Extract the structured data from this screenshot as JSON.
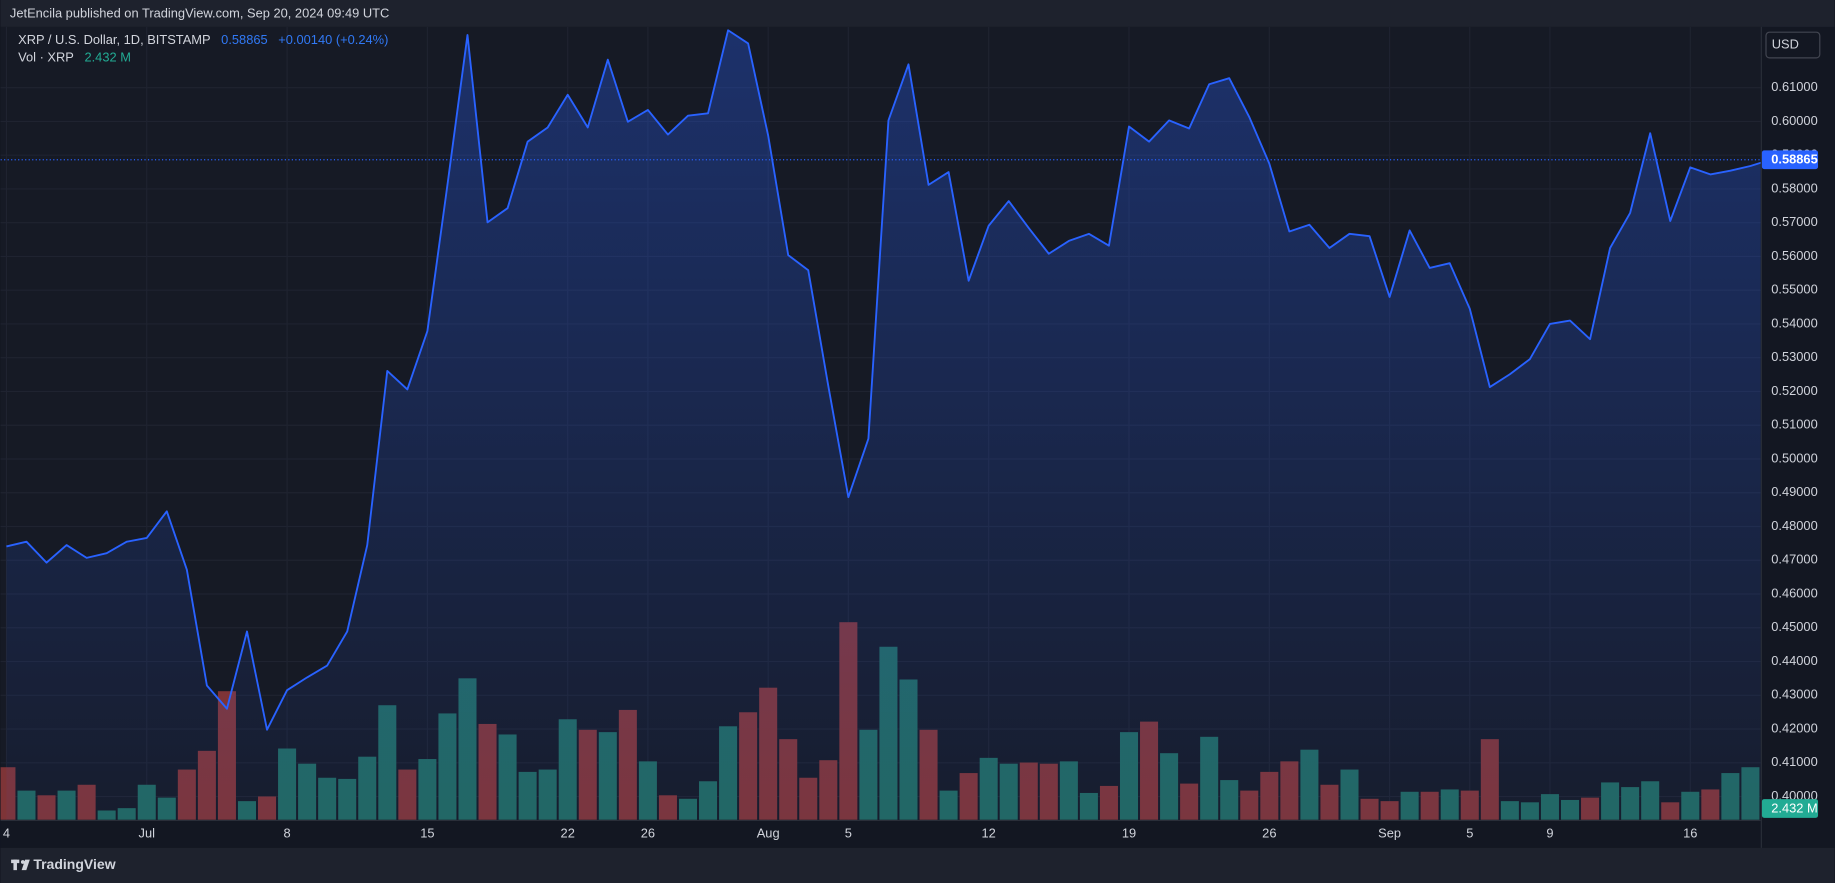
{
  "chart_data": {
    "type": "line",
    "header": "JetEncila published on TradingView.com, Sep 20, 2024 09:49 UTC",
    "change": "+0.00140 (+0.24%)",
    "currency": "USD",
    "footer": "TradingView",
    "grid": true,
    "categories": [
      "4",
      null,
      null,
      null,
      null,
      null,
      null,
      "Jul",
      null,
      null,
      null,
      null,
      null,
      null,
      "8",
      null,
      null,
      null,
      null,
      null,
      null,
      "15",
      null,
      null,
      null,
      null,
      null,
      null,
      "22",
      null,
      null,
      null,
      "26",
      null,
      null,
      null,
      null,
      null,
      "Aug",
      null,
      null,
      null,
      "5",
      null,
      null,
      null,
      null,
      null,
      null,
      "12",
      null,
      null,
      null,
      null,
      null,
      null,
      "19",
      null,
      null,
      null,
      null,
      null,
      null,
      "26",
      null,
      null,
      null,
      null,
      null,
      "Sep",
      null,
      null,
      null,
      "5",
      null,
      null,
      null,
      "9",
      null,
      null,
      null,
      null,
      null,
      null,
      "16",
      null,
      null,
      null,
      null
    ],
    "ylim": [
      0.3931,
      0.628
    ],
    "yticks": [
      {
        "value": 0.4,
        "label": "0.40000"
      },
      {
        "value": 0.41,
        "label": "0.41000"
      },
      {
        "value": 0.42,
        "label": "0.42000"
      },
      {
        "value": 0.43,
        "label": "0.43000"
      },
      {
        "value": 0.44,
        "label": "0.44000"
      },
      {
        "value": 0.45,
        "label": "0.45000"
      },
      {
        "value": 0.46,
        "label": "0.46000"
      },
      {
        "value": 0.47,
        "label": "0.47000"
      },
      {
        "value": 0.48,
        "label": "0.48000"
      },
      {
        "value": 0.49,
        "label": "0.49000"
      },
      {
        "value": 0.5,
        "label": "0.50000"
      },
      {
        "value": 0.51,
        "label": "0.51000"
      },
      {
        "value": 0.52,
        "label": "0.52000"
      },
      {
        "value": 0.53,
        "label": "0.53000"
      },
      {
        "value": 0.54,
        "label": "0.54000"
      },
      {
        "value": 0.55,
        "label": "0.55000"
      },
      {
        "value": 0.56,
        "label": "0.56000"
      },
      {
        "value": 0.57,
        "label": "0.57000"
      },
      {
        "value": 0.58,
        "label": "0.58000"
      },
      {
        "value": 0.59,
        "label": "0.59000"
      },
      {
        "value": 0.6,
        "label": "0.60000"
      },
      {
        "value": 0.61,
        "label": "0.61000"
      }
    ],
    "y2lim": [
      0,
      169.5
    ],
    "series": [
      {
        "name": "XRP / U.S. Dollar, 1D, BITSTAMP",
        "color": "#2962ff",
        "values": [
          0.4741,
          0.4755,
          0.4693,
          0.4745,
          0.4707,
          0.4721,
          0.4755,
          0.4766,
          0.4845,
          0.4672,
          0.4329,
          0.426,
          0.4489,
          0.4198,
          0.4315,
          0.4353,
          0.4388,
          0.4489,
          0.4745,
          0.5261,
          0.5206,
          0.5379,
          0.5812,
          0.6256,
          0.5701,
          0.5743,
          0.594,
          0.5982,
          0.6079,
          0.5982,
          0.6183,
          0.5999,
          0.6034,
          0.5961,
          0.6017,
          0.6024,
          0.627,
          0.6231,
          0.5958,
          0.5604,
          0.5559,
          0.5216,
          0.4887,
          0.506,
          0.6003,
          0.6169,
          0.5812,
          0.585,
          0.5528,
          0.5691,
          0.5764,
          0.5684,
          0.5608,
          0.5646,
          0.5667,
          0.5632,
          0.5985,
          0.594,
          0.6003,
          0.5979,
          0.611,
          0.6128,
          0.6013,
          0.5875,
          0.5674,
          0.5694,
          0.5625,
          0.5667,
          0.566,
          0.548,
          0.5677,
          0.5566,
          0.558,
          0.5445,
          0.5213,
          0.5251,
          0.5296,
          0.54,
          0.541,
          0.5355,
          0.5625,
          0.5729,
          0.5965,
          0.5705,
          0.5864,
          0.5843,
          0.5854,
          0.5868,
          0.58865
        ]
      },
      {
        "name": "Vol · XRP",
        "type": "bar",
        "axis": "y2",
        "color": "#22ab94",
        "values": [
          11.25,
          6.25,
          5.25,
          6.25,
          7.5,
          2,
          2.5,
          7.5,
          4.75,
          10.75,
          14.75,
          27.5,
          4,
          5,
          15.25,
          12,
          9,
          8.75,
          13.5,
          24.5,
          10.75,
          13,
          22.75,
          30.25,
          20.5,
          18.25,
          10.25,
          10.75,
          21.5,
          19.25,
          18.75,
          23.5,
          12.5,
          5.25,
          4.5,
          8.25,
          20,
          23,
          28.25,
          17.25,
          9,
          12.75,
          42.25,
          19.25,
          37,
          30,
          19.25,
          6.25,
          10,
          13.25,
          12,
          12.25,
          12,
          12.5,
          5.75,
          7.25,
          18.75,
          21,
          14.25,
          7.75,
          17.75,
          8.5,
          6.25,
          10.25,
          12.5,
          15,
          7.5,
          10.75,
          4.5,
          4,
          6,
          6,
          6.5,
          6.25,
          17.25,
          4,
          3.75,
          5.5,
          4.25,
          4.75,
          8,
          7,
          8.25,
          3.75,
          6,
          6.5,
          10,
          11.25,
          2.432
        ],
        "value_labels": [
          null,
          null,
          null,
          null,
          null,
          null,
          null,
          null,
          null,
          null,
          null,
          null,
          null,
          null,
          null,
          null,
          null,
          null,
          null,
          null,
          null,
          null,
          null,
          null,
          null,
          null,
          null,
          null,
          null,
          null,
          null,
          null,
          null,
          null,
          null,
          null,
          null,
          null,
          null,
          null,
          null,
          null,
          null,
          null,
          null,
          null,
          null,
          null,
          null,
          null,
          null,
          null,
          null,
          null,
          null,
          null,
          null,
          null,
          null,
          null,
          null,
          null,
          null,
          null,
          null,
          null,
          null,
          null,
          null,
          null,
          null,
          null,
          null,
          null,
          null,
          null,
          null,
          null,
          null,
          null,
          null,
          null,
          null,
          null,
          null,
          null,
          null,
          null,
          "2.432 M"
        ],
        "colors": [
          "#7e3437",
          "#22675f",
          "#7e3437",
          "#22675f",
          "#7e3437",
          "#22675f",
          "#22675f",
          "#22675f",
          "#22675f",
          "#7e3437",
          "#7e3437",
          "#7e3437",
          "#22675f",
          "#7e3437",
          "#22675f",
          "#22675f",
          "#22675f",
          "#22675f",
          "#22675f",
          "#22675f",
          "#7e3437",
          "#22675f",
          "#22675f",
          "#22675f",
          "#7e3437",
          "#22675f",
          "#22675f",
          "#22675f",
          "#22675f",
          "#7e3437",
          "#22675f",
          "#7e3437",
          "#22675f",
          "#7e3437",
          "#22675f",
          "#22675f",
          "#22675f",
          "#7e3437",
          "#7e3437",
          "#7e3437",
          "#7e3437",
          "#7e3437",
          "#7e3437",
          "#22675f",
          "#22675f",
          "#22675f",
          "#7e3437",
          "#22675f",
          "#7e3437",
          "#22675f",
          "#22675f",
          "#7e3437",
          "#7e3437",
          "#22675f",
          "#22675f",
          "#7e3437",
          "#22675f",
          "#7e3437",
          "#22675f",
          "#7e3437",
          "#22675f",
          "#22675f",
          "#7e3437",
          "#7e3437",
          "#7e3437",
          "#22675f",
          "#7e3437",
          "#22675f",
          "#7e3437",
          "#7e3437",
          "#22675f",
          "#7e3437",
          "#22675f",
          "#7e3437",
          "#7e3437",
          "#22675f",
          "#22675f",
          "#22675f",
          "#22675f",
          "#7e3437",
          "#22675f",
          "#22675f",
          "#22675f",
          "#7e3437",
          "#22675f",
          "#7e3437",
          "#22675f",
          "#22675f",
          "#22675f"
        ]
      }
    ]
  }
}
